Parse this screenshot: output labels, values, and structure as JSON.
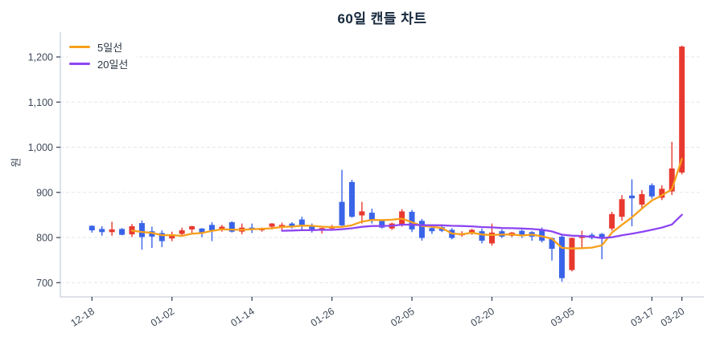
{
  "title": "60일 캔들 차트",
  "y_axis": {
    "label": "원",
    "ticks": [
      {
        "value": 1200,
        "label": "1,200"
      },
      {
        "value": 1100,
        "label": "1,100"
      },
      {
        "value": 1000,
        "label": "1,000"
      },
      {
        "value": 900,
        "label": "900"
      },
      {
        "value": 800,
        "label": "800"
      },
      {
        "value": 700,
        "label": "700"
      }
    ]
  },
  "x_axis": {
    "ticks": [
      {
        "index": 0,
        "label": "12-18"
      },
      {
        "index": 8,
        "label": "01-02"
      },
      {
        "index": 16,
        "label": "01-14"
      },
      {
        "index": 24,
        "label": "01-26"
      },
      {
        "index": 32,
        "label": "02-05"
      },
      {
        "index": 40,
        "label": "02-20"
      },
      {
        "index": 48,
        "label": "03-05"
      },
      {
        "index": 56,
        "label": "03-17"
      },
      {
        "index": 59,
        "label": "03-20"
      }
    ]
  },
  "legend": {
    "position": "top-left",
    "items": [
      {
        "label": "5일선",
        "color": "#f7a01b"
      },
      {
        "label": "20일선",
        "color": "#8d45f2"
      }
    ]
  },
  "chart_data": {
    "type": "candlestick",
    "title": "60일 캔들 차트",
    "ylabel": "원",
    "ylim": [
      668,
      1255
    ],
    "grid": "horizontal-dashed",
    "up_color": "#e8392f",
    "down_color": "#3a64e8",
    "candle_count": 60,
    "ohlc_note": "values in KRW, order [open, high, low, close]",
    "candles": [
      [
        826,
        827,
        811,
        816
      ],
      [
        819,
        825,
        804,
        812
      ],
      [
        812,
        835,
        804,
        818
      ],
      [
        819,
        821,
        805,
        806
      ],
      [
        807,
        830,
        801,
        825
      ],
      [
        832,
        838,
        773,
        801
      ],
      [
        814,
        824,
        777,
        802
      ],
      [
        810,
        816,
        779,
        792
      ],
      [
        798,
        813,
        792,
        807
      ],
      [
        808,
        822,
        805,
        816
      ],
      [
        818,
        826,
        810,
        825
      ],
      [
        820,
        821,
        801,
        810
      ],
      [
        828,
        834,
        792,
        816
      ],
      [
        818,
        828,
        813,
        824
      ],
      [
        834,
        836,
        811,
        813
      ],
      [
        813,
        831,
        807,
        822
      ],
      [
        822,
        831,
        810,
        817
      ],
      [
        816,
        822,
        813,
        820
      ],
      [
        824,
        832,
        818,
        831
      ],
      [
        822,
        833,
        816,
        828
      ],
      [
        831,
        834,
        820,
        825
      ],
      [
        840,
        846,
        817,
        828
      ],
      [
        827,
        831,
        811,
        818
      ],
      [
        817,
        822,
        809,
        821
      ],
      [
        820,
        828,
        817,
        824
      ],
      [
        879,
        950,
        825,
        827
      ],
      [
        923,
        928,
        844,
        846
      ],
      [
        849,
        879,
        831,
        858
      ],
      [
        855,
        864,
        831,
        840
      ],
      [
        837,
        838,
        820,
        822
      ],
      [
        820,
        833,
        817,
        831
      ],
      [
        828,
        863,
        824,
        858
      ],
      [
        857,
        861,
        812,
        818
      ],
      [
        837,
        841,
        793,
        799
      ],
      [
        821,
        827,
        808,
        814
      ],
      [
        823,
        826,
        812,
        815
      ],
      [
        817,
        821,
        796,
        799
      ],
      [
        805,
        814,
        802,
        809
      ],
      [
        809,
        819,
        806,
        817
      ],
      [
        814,
        820,
        787,
        793
      ],
      [
        787,
        831,
        782,
        811
      ],
      [
        814,
        818,
        799,
        802
      ],
      [
        804,
        812,
        801,
        811
      ],
      [
        815,
        817,
        799,
        806
      ],
      [
        812,
        814,
        793,
        802
      ],
      [
        818,
        822,
        789,
        793
      ],
      [
        799,
        800,
        749,
        775
      ],
      [
        802,
        805,
        702,
        710
      ],
      [
        728,
        800,
        725,
        799
      ],
      [
        799,
        815,
        778,
        805
      ],
      [
        806,
        810,
        796,
        799
      ],
      [
        808,
        810,
        752,
        800
      ],
      [
        820,
        857,
        815,
        852
      ],
      [
        846,
        894,
        837,
        885
      ],
      [
        893,
        929,
        825,
        887
      ],
      [
        873,
        905,
        864,
        896
      ],
      [
        916,
        920,
        886,
        891
      ],
      [
        888,
        916,
        883,
        908
      ],
      [
        902,
        1012,
        894,
        953
      ],
      [
        944,
        1225,
        940,
        1223
      ]
    ],
    "overlays": [
      {
        "name": "5일선",
        "type": "moving_average",
        "window": 5,
        "color": "#f7a01b"
      },
      {
        "name": "20일선",
        "type": "moving_average",
        "window": 20,
        "color": "#8d45f2"
      }
    ]
  }
}
